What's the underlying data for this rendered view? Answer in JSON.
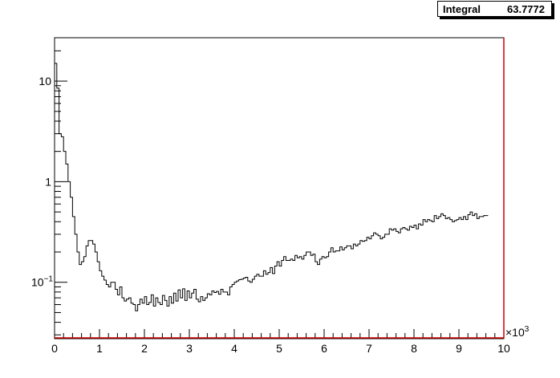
{
  "stats": {
    "label": "Integral",
    "value": "63.7772"
  },
  "chart_data": {
    "type": "line",
    "style": "step-histogram",
    "title": "",
    "xlabel": "",
    "ylabel": "",
    "x_multiplier_label": "×10",
    "x_multiplier_exp": "3",
    "xlim": [
      0,
      10000
    ],
    "ylim": [
      0.028,
      27
    ],
    "yscale": "log",
    "grid": false,
    "x_ticks": [
      "0",
      "1",
      "2",
      "3",
      "4",
      "5",
      "6",
      "7",
      "8",
      "9",
      "10"
    ],
    "y_ticks": [
      {
        "value": 10,
        "label": "10",
        "exp": ""
      },
      {
        "value": 1,
        "label": "1",
        "exp": ""
      },
      {
        "value": 0.1,
        "label": "10",
        "exp": "−1"
      }
    ],
    "line_color": "#000000",
    "baseline_color": "#cc0000",
    "bin_width": 50,
    "x_start": 0,
    "values": [
      15,
      8.5,
      3.0,
      2.8,
      2.0,
      1.5,
      1.0,
      0.7,
      0.45,
      0.3,
      0.2,
      0.15,
      0.16,
      0.18,
      0.23,
      0.26,
      0.26,
      0.24,
      0.2,
      0.16,
      0.13,
      0.115,
      0.105,
      0.095,
      0.09,
      0.1,
      0.1,
      0.085,
      0.075,
      0.09,
      0.07,
      0.065,
      0.068,
      0.07,
      0.062,
      0.06,
      0.052,
      0.06,
      0.068,
      0.062,
      0.072,
      0.06,
      0.063,
      0.075,
      0.058,
      0.07,
      0.063,
      0.06,
      0.074,
      0.066,
      0.058,
      0.072,
      0.062,
      0.078,
      0.065,
      0.084,
      0.07,
      0.086,
      0.066,
      0.082,
      0.07,
      0.078,
      0.085,
      0.068,
      0.064,
      0.072,
      0.066,
      0.07,
      0.077,
      0.075,
      0.082,
      0.079,
      0.081,
      0.076,
      0.085,
      0.08,
      0.08,
      0.075,
      0.09,
      0.095,
      0.1,
      0.103,
      0.106,
      0.107,
      0.11,
      0.112,
      0.103,
      0.1,
      0.107,
      0.115,
      0.12,
      0.115,
      0.115,
      0.13,
      0.12,
      0.125,
      0.14,
      0.122,
      0.145,
      0.16,
      0.145,
      0.165,
      0.18,
      0.165,
      0.165,
      0.17,
      0.165,
      0.185,
      0.175,
      0.18,
      0.17,
      0.185,
      0.2,
      0.2,
      0.185,
      0.19,
      0.16,
      0.15,
      0.17,
      0.18,
      0.175,
      0.18,
      0.2,
      0.22,
      0.2,
      0.205,
      0.205,
      0.225,
      0.21,
      0.22,
      0.23,
      0.23,
      0.215,
      0.24,
      0.23,
      0.24,
      0.26,
      0.255,
      0.26,
      0.28,
      0.27,
      0.29,
      0.31,
      0.3,
      0.29,
      0.27,
      0.28,
      0.3,
      0.3,
      0.34,
      0.33,
      0.34,
      0.32,
      0.31,
      0.34,
      0.35,
      0.34,
      0.33,
      0.36,
      0.35,
      0.37,
      0.34,
      0.38,
      0.37,
      0.42,
      0.4,
      0.42,
      0.41,
      0.4,
      0.46,
      0.43,
      0.45,
      0.48,
      0.46,
      0.43,
      0.44,
      0.42,
      0.4,
      0.41,
      0.42,
      0.44,
      0.42,
      0.45,
      0.42,
      0.47,
      0.5,
      0.46,
      0.48,
      0.43,
      0.45,
      0.45,
      0.46,
      0.46
    ]
  }
}
